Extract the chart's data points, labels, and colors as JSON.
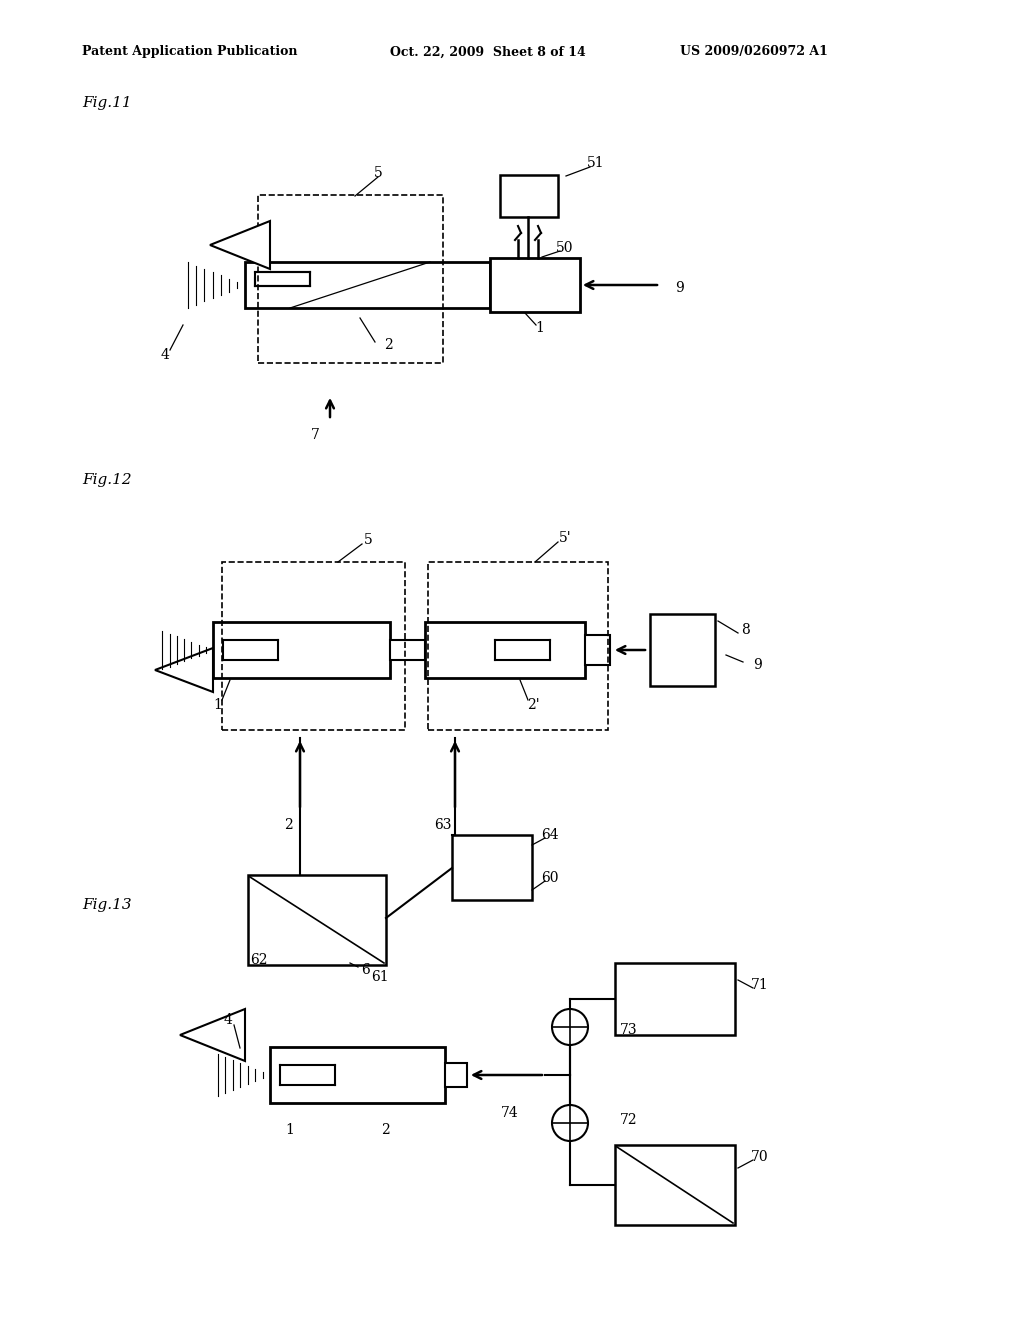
{
  "bg_color": "#ffffff",
  "header_left": "Patent Application Publication",
  "header_mid": "Oct. 22, 2009  Sheet 8 of 14",
  "header_right": "US 2009/0260972 A1"
}
